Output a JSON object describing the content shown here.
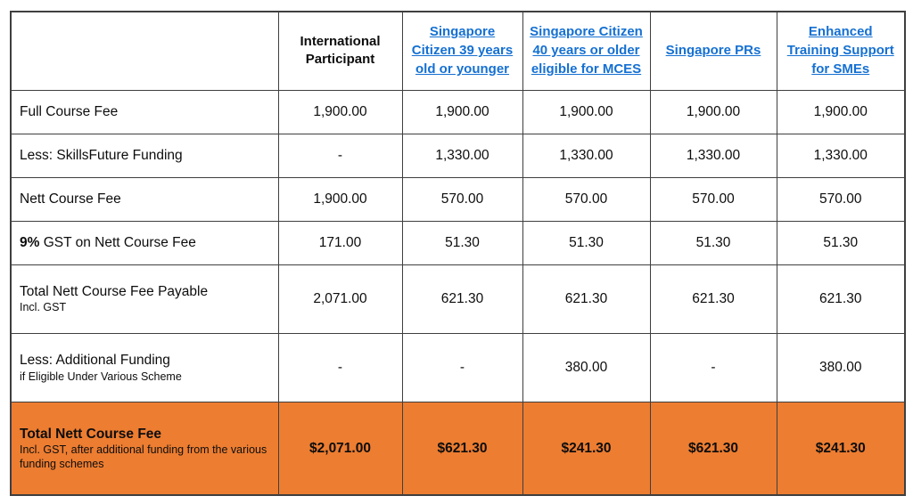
{
  "colors": {
    "highlight": "#ed7d31",
    "link": "#1570d2",
    "border": "#3f3f3f",
    "text": "#0d0d0d"
  },
  "table": {
    "columns": [
      {
        "name": "column-row-labels",
        "label": "",
        "link": false
      },
      {
        "name": "column-international-participant",
        "label": "International Participant",
        "link": false
      },
      {
        "name": "column-sg-citizen-39-or-younger",
        "label": "Singapore Citizen 39 years old or younger",
        "link": true
      },
      {
        "name": "column-sg-citizen-40-or-older-mces",
        "label": "Singapore Citizen 40 years or older eligible for MCES",
        "link": true
      },
      {
        "name": "column-singapore-prs",
        "label": "Singapore PRs",
        "link": true
      },
      {
        "name": "column-enhanced-training-support-smes",
        "label": "Enhanced Training Support for SMEs",
        "link": true
      }
    ],
    "rows": [
      {
        "name": "row-full-course-fee",
        "label_parts": [
          {
            "text": "Full Course Fee",
            "bold": false
          }
        ],
        "sublabel": "",
        "values": [
          "1,900.00",
          "1,900.00",
          "1,900.00",
          "1,900.00",
          "1,900.00"
        ],
        "highlight": false
      },
      {
        "name": "row-less-skillsfuture-funding",
        "label_parts": [
          {
            "text": "Less: SkillsFuture Funding",
            "bold": false
          }
        ],
        "sublabel": "",
        "values": [
          "-",
          "1,330.00",
          "1,330.00",
          "1,330.00",
          "1,330.00"
        ],
        "highlight": false
      },
      {
        "name": "row-nett-course-fee",
        "label_parts": [
          {
            "text": "Nett Course Fee",
            "bold": false
          }
        ],
        "sublabel": "",
        "values": [
          "1,900.00",
          "570.00",
          "570.00",
          "570.00",
          "570.00"
        ],
        "highlight": false
      },
      {
        "name": "row-gst-on-nett-course-fee",
        "label_parts": [
          {
            "text": "9%",
            "bold": true
          },
          {
            "text": " GST on Nett Course Fee",
            "bold": false
          }
        ],
        "sublabel": "",
        "values": [
          "171.00",
          "51.30",
          "51.30",
          "51.30",
          "51.30"
        ],
        "highlight": false
      },
      {
        "name": "row-total-nett-course-fee-payable",
        "label_parts": [
          {
            "text": "Total Nett Course Fee Payable",
            "bold": false
          }
        ],
        "sublabel": "Incl. GST",
        "values": [
          "2,071.00",
          "621.30",
          "621.30",
          "621.30",
          "621.30"
        ],
        "highlight": false
      },
      {
        "name": "row-less-additional-funding",
        "label_parts": [
          {
            "text": "Less: Additional Funding",
            "bold": false
          }
        ],
        "sublabel": "if Eligible Under Various Scheme",
        "values": [
          "-",
          "-",
          "380.00",
          "-",
          "380.00"
        ],
        "highlight": false
      },
      {
        "name": "row-total-nett-course-fee",
        "label_parts": [
          {
            "text": "Total Nett Course Fee",
            "bold": true
          }
        ],
        "sublabel": "Incl. GST, after additional funding from the various funding schemes",
        "values": [
          "$2,071.00",
          "$621.30",
          "$241.30",
          "$621.30",
          "$241.30"
        ],
        "highlight": true
      }
    ]
  }
}
